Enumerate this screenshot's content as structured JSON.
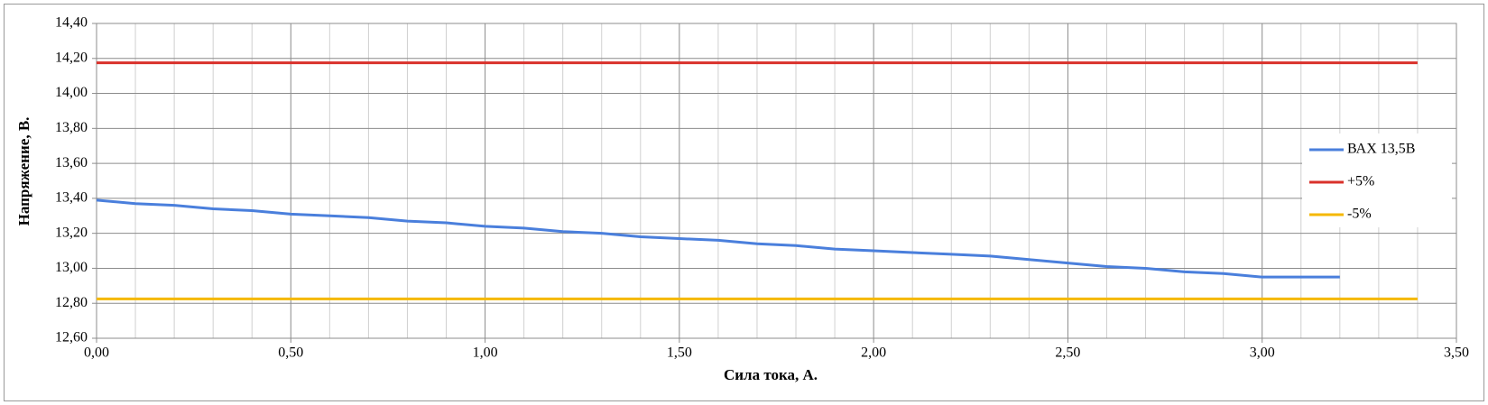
{
  "chart_data": {
    "type": "line",
    "xlabel": "Сила тока, А.",
    "ylabel": "Напряжение, В.",
    "xlim": [
      0,
      3.5
    ],
    "ylim": [
      12.6,
      14.4
    ],
    "xticks": [
      {
        "value": 0,
        "label": "0,00"
      },
      {
        "value": 0.5,
        "label": "0,50"
      },
      {
        "value": 1,
        "label": "1,00"
      },
      {
        "value": 1.5,
        "label": "1,50"
      },
      {
        "value": 2,
        "label": "2,00"
      },
      {
        "value": 2.5,
        "label": "2,50"
      },
      {
        "value": 3,
        "label": "3,00"
      },
      {
        "value": 3.5,
        "label": "3,50"
      }
    ],
    "yticks": [
      {
        "value": 12.6,
        "label": "12,60"
      },
      {
        "value": 12.8,
        "label": "12,80"
      },
      {
        "value": 13,
        "label": "13,00"
      },
      {
        "value": 13.2,
        "label": "13,20"
      },
      {
        "value": 13.4,
        "label": "13,40"
      },
      {
        "value": 13.6,
        "label": "13,60"
      },
      {
        "value": 13.8,
        "label": "13,80"
      },
      {
        "value": 14,
        "label": "14,00"
      },
      {
        "value": 14.2,
        "label": "14,20"
      },
      {
        "value": 14.4,
        "label": "14,40"
      }
    ],
    "grid": true,
    "legend": "right",
    "series": [
      {
        "name": "ВАХ 13,5В",
        "color": "#4a7fdc",
        "x": [
          0,
          0.1,
          0.2,
          0.3,
          0.4,
          0.5,
          0.6,
          0.7,
          0.8,
          0.9,
          1.0,
          1.1,
          1.2,
          1.3,
          1.4,
          1.5,
          1.6,
          1.7,
          1.8,
          1.9,
          2.0,
          2.1,
          2.2,
          2.3,
          2.4,
          2.5,
          2.6,
          2.7,
          2.8,
          2.9,
          3.0,
          3.1,
          3.2
        ],
        "values": [
          13.39,
          13.37,
          13.36,
          13.34,
          13.33,
          13.31,
          13.3,
          13.29,
          13.27,
          13.26,
          13.24,
          13.23,
          13.21,
          13.2,
          13.18,
          13.17,
          13.16,
          13.14,
          13.13,
          13.11,
          13.1,
          13.09,
          13.08,
          13.07,
          13.05,
          13.03,
          13.01,
          13.0,
          12.98,
          12.97,
          12.95,
          12.95,
          12.95
        ]
      },
      {
        "name": "+5%",
        "color": "#d9312b",
        "x": [
          0,
          3.4
        ],
        "values": [
          14.175,
          14.175
        ]
      },
      {
        "name": "-5%",
        "color": "#f5b800",
        "x": [
          0,
          3.4
        ],
        "values": [
          12.825,
          12.825
        ]
      }
    ]
  }
}
